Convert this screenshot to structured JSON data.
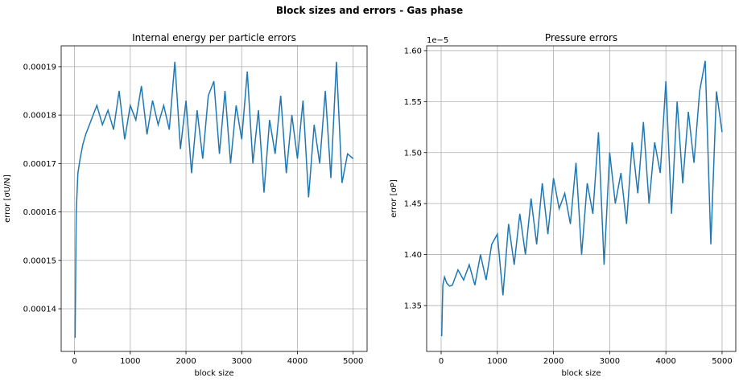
{
  "title": "Block sizes and errors - Gas phase",
  "chart_data": [
    {
      "type": "line",
      "title": "Internal energy per particle errors",
      "xlabel": "block size",
      "ylabel": "error [σU/N]",
      "x": [
        10,
        30,
        60,
        100,
        150,
        200,
        300,
        400,
        500,
        600,
        700,
        800,
        900,
        1000,
        1100,
        1200,
        1300,
        1400,
        1500,
        1600,
        1700,
        1800,
        1900,
        2000,
        2100,
        2200,
        2300,
        2400,
        2500,
        2600,
        2700,
        2800,
        2900,
        3000,
        3100,
        3200,
        3300,
        3400,
        3500,
        3600,
        3700,
        3800,
        3900,
        4000,
        4100,
        4200,
        4300,
        4400,
        4500,
        4600,
        4700,
        4800,
        4900,
        5000
      ],
      "series": [
        {
          "color": "#1f77b4",
          "values": [
            0.000134,
            0.00016,
            0.000168,
            0.000171,
            0.000174,
            0.000176,
            0.000179,
            0.000182,
            0.000178,
            0.000181,
            0.000177,
            0.000185,
            0.000175,
            0.000182,
            0.000179,
            0.000186,
            0.000176,
            0.000183,
            0.000178,
            0.000182,
            0.000177,
            0.000191,
            0.000173,
            0.000183,
            0.000168,
            0.000181,
            0.000171,
            0.000184,
            0.000187,
            0.000172,
            0.000185,
            0.00017,
            0.000182,
            0.000175,
            0.000189,
            0.00017,
            0.000181,
            0.000164,
            0.000179,
            0.000172,
            0.000184,
            0.000168,
            0.00018,
            0.000171,
            0.000183,
            0.000163,
            0.000178,
            0.00017,
            0.000185,
            0.000167,
            0.000191,
            0.000166,
            0.000172,
            0.000171
          ]
        }
      ],
      "xlim": [
        -240,
        5250
      ],
      "ylim": [
        0.0001312,
        0.0001943
      ],
      "xticks": [
        0,
        1000,
        2000,
        3000,
        4000,
        5000
      ],
      "yticks": [
        0.00014,
        0.00015,
        0.00016,
        0.00017,
        0.00018,
        0.00019
      ],
      "grid": true
    },
    {
      "type": "line",
      "title": "Pressure errors",
      "xlabel": "block size",
      "ylabel": "error [σP]",
      "y_offset_label": "1e−5",
      "x": [
        10,
        30,
        60,
        100,
        150,
        200,
        300,
        400,
        500,
        600,
        700,
        800,
        900,
        1000,
        1100,
        1200,
        1300,
        1400,
        1500,
        1600,
        1700,
        1800,
        1900,
        2000,
        2100,
        2200,
        2300,
        2400,
        2500,
        2600,
        2700,
        2800,
        2900,
        3000,
        3100,
        3200,
        3300,
        3400,
        3500,
        3600,
        3700,
        3800,
        3900,
        4000,
        4100,
        4200,
        4300,
        4400,
        4500,
        4600,
        4700,
        4800,
        4900,
        5000
      ],
      "series": [
        {
          "color": "#1f77b4",
          "values": [
            1.32,
            1.37,
            1.378,
            1.372,
            1.369,
            1.37,
            1.385,
            1.375,
            1.39,
            1.37,
            1.4,
            1.375,
            1.41,
            1.42,
            1.36,
            1.43,
            1.39,
            1.44,
            1.4,
            1.455,
            1.41,
            1.47,
            1.42,
            1.475,
            1.445,
            1.46,
            1.43,
            1.49,
            1.4,
            1.47,
            1.44,
            1.52,
            1.39,
            1.5,
            1.45,
            1.48,
            1.43,
            1.51,
            1.46,
            1.53,
            1.45,
            1.51,
            1.48,
            1.57,
            1.44,
            1.55,
            1.47,
            1.54,
            1.49,
            1.56,
            1.59,
            1.41,
            1.56,
            1.52
          ]
        }
      ],
      "xlim": [
        -258,
        5244
      ],
      "ylim": [
        1.305,
        1.6047
      ],
      "xticks": [
        0,
        1000,
        2000,
        3000,
        4000,
        5000
      ],
      "yticks": [
        1.35,
        {
          "value": 1.4,
          "label": "1.40"
        },
        1.45,
        {
          "value": 1.5,
          "label": "1.50"
        },
        1.55,
        {
          "value": 1.6,
          "label": "1.60"
        }
      ],
      "grid": true
    }
  ]
}
